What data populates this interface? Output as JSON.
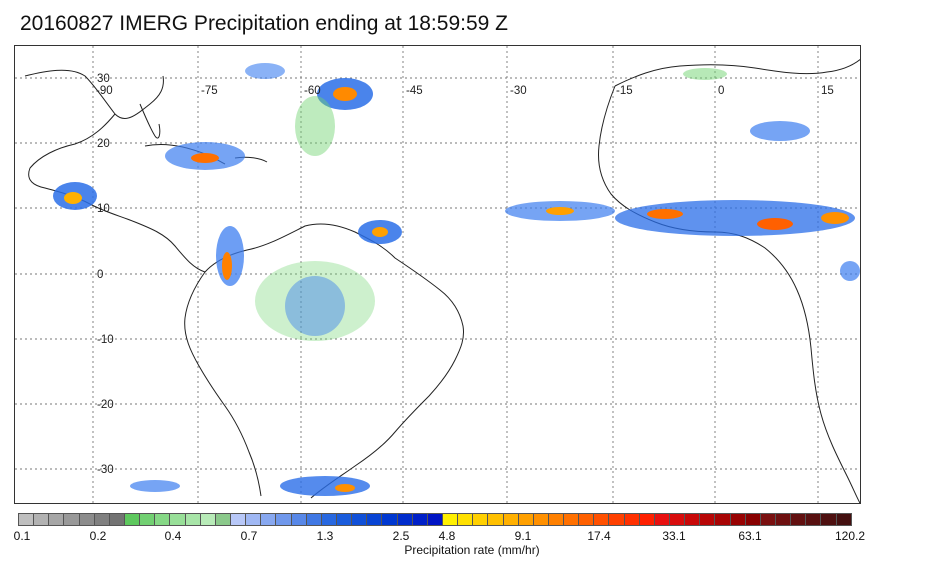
{
  "title": "20160827 IMERG Precipitation ending at 18:59:59 Z",
  "map": {
    "lon_ticks": [
      "-90",
      "-75",
      "-60",
      "-45",
      "-30",
      "-15",
      "0",
      "15"
    ],
    "lat_ticks": [
      "30",
      "20",
      "10",
      "0",
      "-10",
      "-20",
      "-30"
    ],
    "land_outline_color": "#222222",
    "gridline_color": "#777777"
  },
  "colorbar": {
    "colors": [
      "#bfbfbf",
      "#b2b2b2",
      "#a6a6a6",
      "#999999",
      "#8c8c8c",
      "#808080",
      "#737373",
      "#5ec85e",
      "#72d072",
      "#86d886",
      "#98df98",
      "#a8e5a8",
      "#b8ebb8",
      "#8bc98b",
      "#b8c8f8",
      "#a0b8f4",
      "#88a8f0",
      "#7098ec",
      "#5888e8",
      "#4078e4",
      "#2868e0",
      "#1a5cdc",
      "#1050d8",
      "#0844d4",
      "#0038d0",
      "#002ccc",
      "#0020c8",
      "#0014c4",
      "#fff000",
      "#ffe000",
      "#ffd000",
      "#ffc000",
      "#ffb000",
      "#ffa000",
      "#ff9000",
      "#ff8000",
      "#ff7000",
      "#ff6000",
      "#ff5000",
      "#ff4000",
      "#ff3000",
      "#ff2000",
      "#e81010",
      "#d80c0c",
      "#c80808",
      "#b80606",
      "#a80404",
      "#980202",
      "#880000",
      "#7a1010",
      "#6e1010",
      "#621010",
      "#581010",
      "#4e1010",
      "#441010"
    ],
    "labels": [
      "0.1",
      "0.2",
      "0.4",
      "0.7",
      "1.3",
      "2.5",
      "4.8",
      "9.1",
      "17.4",
      "33.1",
      "63.1",
      "120.2"
    ],
    "label_title": "Precipitation rate (mm/hr)"
  }
}
